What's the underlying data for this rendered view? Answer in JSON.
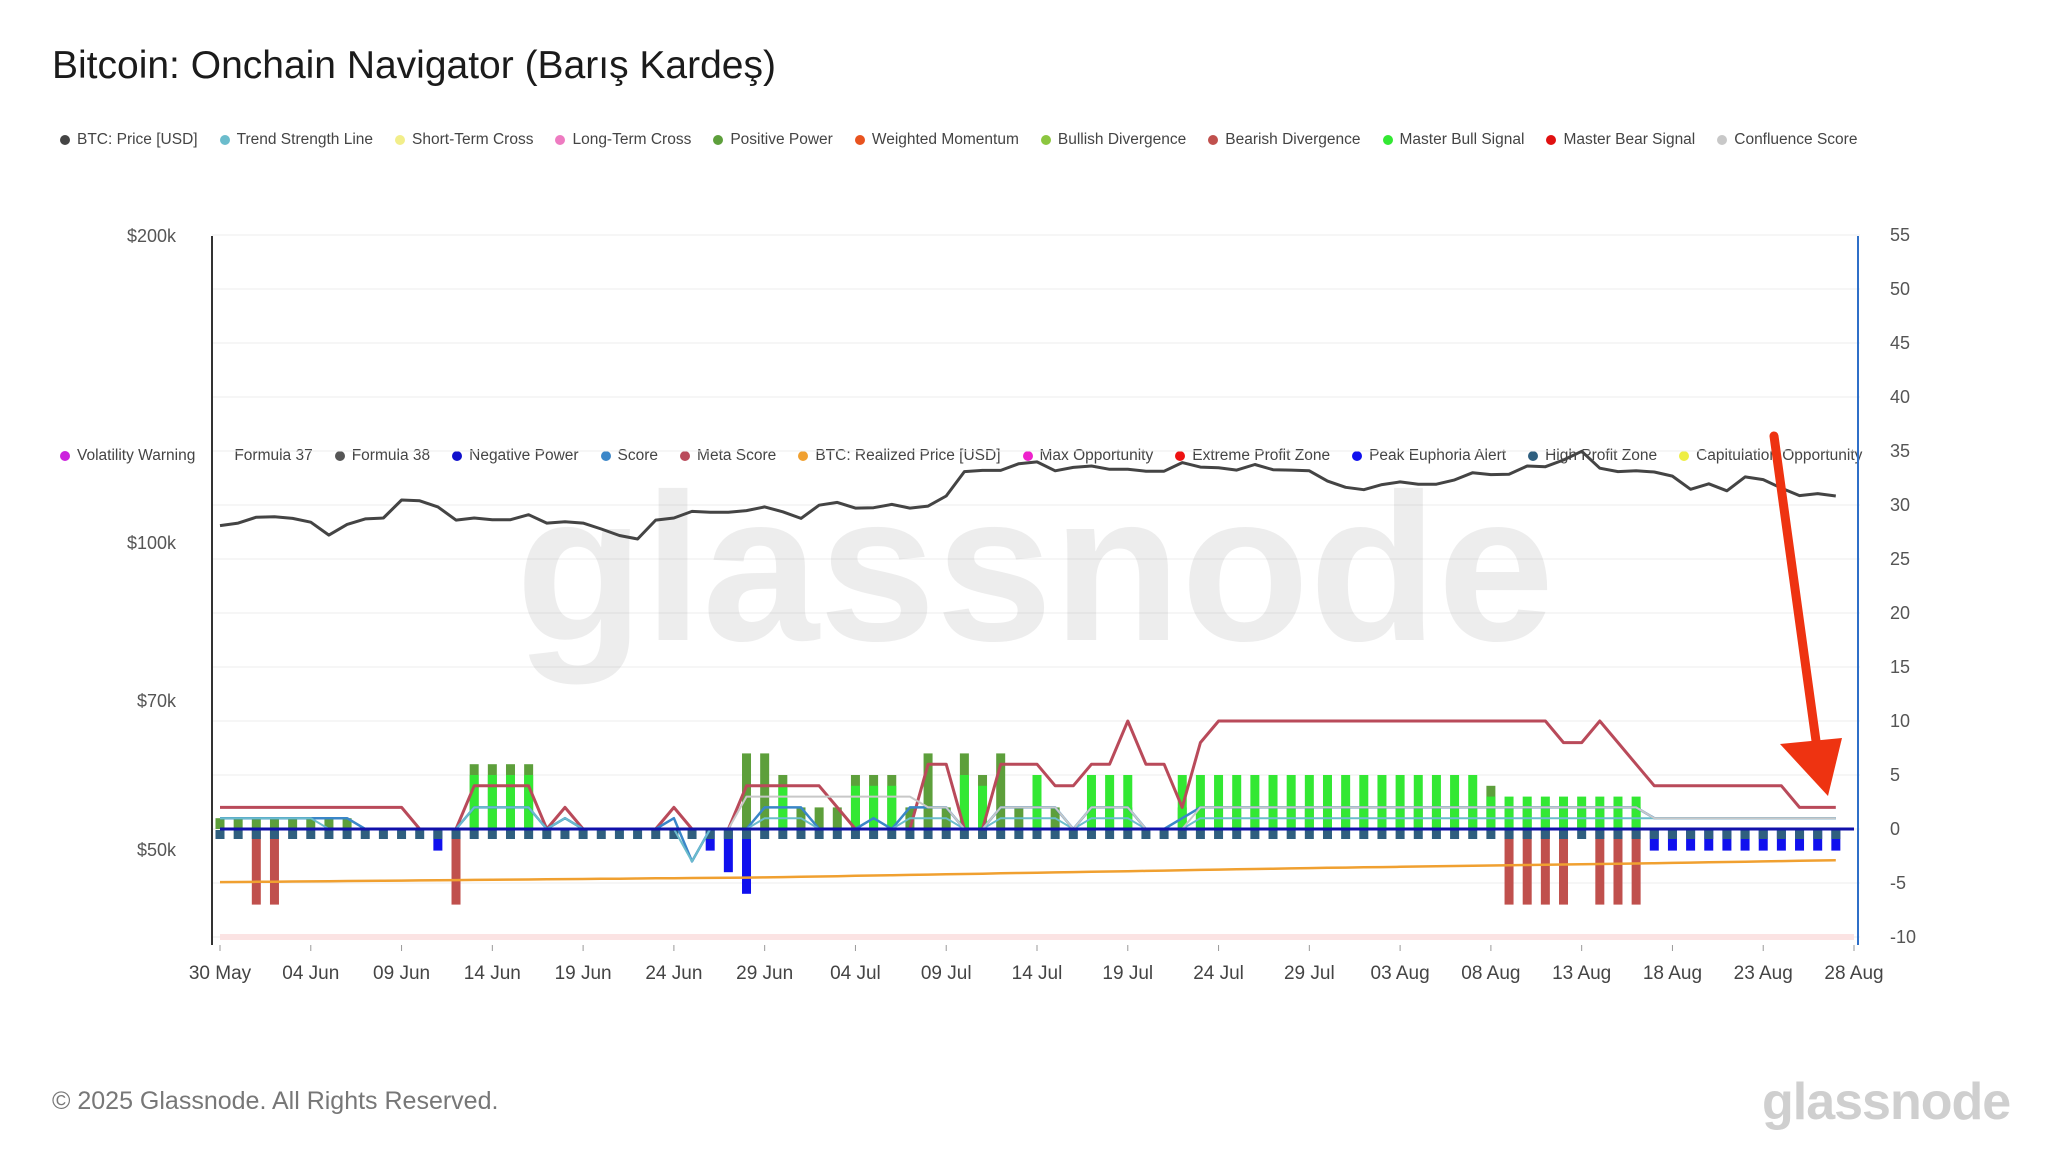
{
  "title": "Bitcoin: Onchain Navigator (Barış Kardeş)",
  "copyright": "© 2025 Glassnode. All Rights Reserved.",
  "brand": "glassnode",
  "watermark": "glassnode",
  "legend_row_1": [
    {
      "label": "BTC: Price [USD]",
      "color": "#444444"
    },
    {
      "label": "Trend Strength Line",
      "color": "#6bbccc"
    },
    {
      "label": "Short-Term Cross",
      "color": "#f2ee8a"
    },
    {
      "label": "Long-Term Cross",
      "color": "#ee7bc1"
    },
    {
      "label": "Positive Power",
      "color": "#5d9f3b"
    },
    {
      "label": "Weighted Momentum",
      "color": "#e8531f"
    },
    {
      "label": "Bullish Divergence",
      "color": "#8cc63f"
    },
    {
      "label": "Bearish Divergence",
      "color": "#c0504d"
    },
    {
      "label": "Master Bull Signal",
      "color": "#33e833"
    },
    {
      "label": "Master Bear Signal",
      "color": "#e01010"
    },
    {
      "label": "Confluence Score",
      "color": "#c8c8c8"
    }
  ],
  "legend_row_2": [
    {
      "label": "Volatility Warning",
      "color": "#cc22dd"
    },
    {
      "label": "Formula 37",
      "color": "#ffffff"
    },
    {
      "label": "Formula 38",
      "color": "#555555"
    },
    {
      "label": "Negative Power",
      "color": "#1010cc"
    },
    {
      "label": "Score",
      "color": "#3a86c8"
    },
    {
      "label": "Meta Score",
      "color": "#b94a5a"
    },
    {
      "label": "BTC: Realized Price [USD]",
      "color": "#f0a030"
    },
    {
      "label": "Max Opportunity",
      "color": "#ee22cc"
    },
    {
      "label": "Extreme Profit Zone",
      "color": "#ee1111"
    },
    {
      "label": "Peak Euphoria Alert",
      "color": "#1010ee"
    },
    {
      "label": "High Profit Zone",
      "color": "#2f5f7f"
    },
    {
      "label": "Capitulation Opportunity",
      "color": "#eeee44"
    }
  ],
  "colors": {
    "price": "#444444",
    "realized": "#f0a030",
    "meta": "#b94a5a",
    "score": "#3a86c8",
    "trend": "#6bbccc",
    "confluence": "#c8c8c8",
    "peak": "#1010aa",
    "master_bull": "#33e833",
    "positive": "#5d9f3b",
    "bullish": "#8cc63f",
    "bearish": "#c0504d",
    "negative": "#1010ee",
    "high_profit": "#2f5f7f",
    "extreme": "#ee1111",
    "short_cross": "#f2ee8a",
    "long_cross": "#ee7bc1",
    "volatility": "#cc22dd",
    "capitulation": "#eeee44",
    "annotation_arrow": "#ee3311"
  },
  "chart_data": {
    "type": "line",
    "title": "Bitcoin: Onchain Navigator (Barış Kardeş)",
    "x_start": "2025-05-30",
    "x_end": "2025-08-28",
    "x_ticks": [
      "30 May",
      "04 Jun",
      "09 Jun",
      "14 Jun",
      "19 Jun",
      "24 Jun",
      "29 Jun",
      "04 Jul",
      "09 Jul",
      "14 Jul",
      "19 Jul",
      "24 Jul",
      "29 Jul",
      "03 Aug",
      "08 Aug",
      "13 Aug",
      "18 Aug",
      "23 Aug",
      "28 Aug"
    ],
    "y_left": {
      "scale": "log",
      "ticks": [
        {
          "value": 50000,
          "label": "$50k"
        },
        {
          "value": 70000,
          "label": "$70k"
        },
        {
          "value": 100000,
          "label": "$100k"
        },
        {
          "value": 200000,
          "label": "$200k"
        }
      ]
    },
    "y_right": {
      "scale": "linear",
      "range": [
        -10,
        55
      ],
      "ticks": [
        "-10",
        "-5",
        "0",
        "5",
        "10",
        "15",
        "20",
        "25",
        "30",
        "35",
        "40",
        "45",
        "50",
        "55"
      ]
    },
    "series": [
      {
        "name": "BTC: Price [USD]",
        "axis": "left",
        "values": [
          104000,
          104600,
          106000,
          106100,
          105700,
          104800,
          101800,
          104300,
          105600,
          105800,
          110200,
          110000,
          108500,
          105300,
          105800,
          105400,
          105400,
          106600,
          104600,
          104900,
          104600,
          103200,
          101700,
          100900,
          105300,
          105800,
          107400,
          107200,
          107200,
          107600,
          108500,
          107300,
          105700,
          108900,
          109600,
          108200,
          108300,
          109100,
          108200,
          108700,
          111200,
          117500,
          117800,
          117800,
          119600,
          120100,
          117700,
          118600,
          119000,
          118100,
          118100,
          117600,
          117600,
          119900,
          118700,
          118500,
          117900,
          119400,
          118000,
          117900,
          117700,
          115000,
          113400,
          112800,
          114100,
          114800,
          114200,
          114200,
          115300,
          117200,
          116700,
          116800,
          119000,
          118800,
          120600,
          123000,
          118400,
          117500,
          117700,
          117400,
          116300,
          112900,
          114300,
          112500,
          116100,
          115400,
          113200,
          111300,
          111800,
          111200
        ]
      },
      {
        "name": "BTC: Realized Price [USD]",
        "axis": "left",
        "values": [
          46500,
          46517,
          46533,
          46550,
          46567,
          46583,
          46600,
          46617,
          46633,
          46650,
          46667,
          46683,
          46700,
          46717,
          46733,
          46750,
          46767,
          46783,
          46800,
          46817,
          46833,
          46850,
          46867,
          46883,
          46900,
          46917,
          46933,
          46950,
          46967,
          46983,
          47000,
          47033,
          47067,
          47100,
          47133,
          47167,
          47200,
          47233,
          47267,
          47300,
          47333,
          47367,
          47400,
          47433,
          47467,
          47500,
          47533,
          47567,
          47600,
          47633,
          47667,
          47700,
          47733,
          47767,
          47800,
          47833,
          47867,
          47900,
          47933,
          47967,
          48000,
          48028,
          48056,
          48083,
          48111,
          48139,
          48167,
          48194,
          48222,
          48250,
          48278,
          48306,
          48333,
          48361,
          48389,
          48417,
          48444,
          48472,
          48500,
          48533,
          48567,
          48600,
          48633,
          48667,
          48700,
          48733,
          48767,
          48800,
          48833,
          48850
        ]
      },
      {
        "name": "Meta Score",
        "axis": "right",
        "values": [
          2,
          2,
          2,
          2,
          2,
          2,
          2,
          2,
          2,
          2,
          2,
          0,
          0,
          0,
          4,
          4,
          4,
          4,
          0,
          2,
          0,
          0,
          0,
          0,
          0,
          2,
          0,
          0,
          0,
          4,
          4,
          4,
          4,
          4,
          2,
          0,
          0,
          0,
          0,
          6,
          6,
          0,
          0,
          6,
          6,
          6,
          4,
          4,
          6,
          6,
          10,
          6,
          6,
          2,
          8,
          10,
          10,
          10,
          10,
          10,
          10,
          10,
          10,
          10,
          10,
          10,
          10,
          10,
          10,
          10,
          10,
          10,
          10,
          10,
          8,
          8,
          10,
          8,
          6,
          4,
          4,
          4,
          4,
          4,
          4,
          4,
          4,
          2,
          2,
          2
        ]
      },
      {
        "name": "Score",
        "axis": "right",
        "values": [
          1,
          1,
          1,
          1,
          1,
          1,
          1,
          1,
          0,
          0,
          0,
          0,
          0,
          0,
          2,
          2,
          2,
          2,
          0,
          1,
          0,
          0,
          0,
          0,
          0,
          1,
          -3,
          0,
          0,
          0,
          2,
          2,
          2,
          0,
          0,
          0,
          1,
          0,
          2,
          2,
          2,
          0,
          0,
          2,
          2,
          2,
          2,
          0,
          2,
          2,
          2,
          0,
          0,
          1,
          2,
          2,
          2,
          2,
          2,
          2,
          2,
          2,
          2,
          2,
          2,
          2,
          2,
          2,
          2,
          2,
          2,
          2,
          2,
          2,
          2,
          2,
          2,
          2,
          2,
          1,
          1,
          1,
          1,
          1,
          1,
          1,
          1,
          1,
          1,
          1
        ]
      },
      {
        "name": "Trend Strength Line",
        "axis": "right",
        "values": [
          1,
          1,
          1,
          1,
          1,
          1,
          0,
          0,
          0,
          0,
          0,
          0,
          0,
          0,
          2,
          2,
          2,
          2,
          0,
          1,
          0,
          0,
          0,
          0,
          0,
          0,
          -3,
          0,
          0,
          0,
          1,
          1,
          1,
          0,
          0,
          0,
          0,
          0,
          1,
          1,
          1,
          0,
          0,
          1,
          1,
          1,
          1,
          0,
          1,
          1,
          1,
          0,
          0,
          0,
          1,
          1,
          1,
          1,
          1,
          1,
          1,
          1,
          1,
          1,
          1,
          1,
          1,
          1,
          1,
          1,
          1,
          1,
          1,
          1,
          1,
          1,
          1,
          1,
          1,
          1,
          1,
          1,
          1,
          1,
          1,
          1,
          1,
          1,
          1,
          1
        ]
      },
      {
        "name": "Confluence Score",
        "axis": "right",
        "values": [
          0,
          0,
          0,
          0,
          0,
          0,
          0,
          0,
          0,
          0,
          0,
          0,
          0,
          0,
          0,
          0,
          0,
          0,
          0,
          0,
          0,
          0,
          0,
          0,
          0,
          0,
          0,
          0,
          0,
          3,
          3,
          3,
          3,
          3,
          3,
          3,
          3,
          3,
          3,
          2,
          2,
          0,
          0,
          2,
          2,
          2,
          2,
          0,
          2,
          2,
          2,
          0,
          0,
          0,
          2,
          2,
          2,
          2,
          2,
          2,
          2,
          2,
          2,
          2,
          2,
          2,
          2,
          2,
          2,
          2,
          2,
          2,
          2,
          2,
          2,
          2,
          2,
          2,
          2,
          1,
          1,
          1,
          1,
          1,
          1,
          1,
          1,
          1,
          1,
          1
        ]
      },
      {
        "name": "Peak Euphoria Alert",
        "axis": "right",
        "values": [
          0,
          0,
          0,
          0,
          0,
          0,
          0,
          0,
          0,
          0,
          0,
          0,
          0,
          0,
          0,
          0,
          0,
          0,
          0,
          0,
          0,
          0,
          0,
          0,
          0,
          0,
          0,
          0,
          0,
          0,
          0,
          0,
          0,
          0,
          0,
          0,
          0,
          0,
          0,
          0,
          0,
          0,
          0,
          0,
          0,
          0,
          0,
          0,
          0,
          0,
          0,
          0,
          0,
          0,
          0,
          0,
          0,
          0,
          0,
          0,
          0,
          0,
          0,
          0,
          0,
          0,
          0,
          0,
          0,
          0,
          0,
          0,
          0,
          0,
          0,
          0,
          0,
          0,
          0,
          0,
          0,
          0,
          0,
          0,
          0,
          0,
          0,
          0,
          0,
          0
        ]
      },
      {
        "name": "Positive Power",
        "axis": "right",
        "type": "bar",
        "values": [
          1,
          1,
          1,
          1,
          1,
          1,
          1,
          1,
          0,
          0,
          0,
          0,
          0,
          0,
          6,
          6,
          6,
          6,
          0,
          0,
          0,
          0,
          0,
          0,
          0,
          0,
          0,
          0,
          0,
          7,
          7,
          5,
          2,
          2,
          2,
          5,
          5,
          5,
          2,
          7,
          2,
          7,
          5,
          7,
          2,
          4,
          2,
          0,
          2,
          2,
          2,
          0,
          0,
          2,
          2,
          2,
          2,
          2,
          2,
          2,
          2,
          2,
          2,
          2,
          2,
          2,
          2,
          2,
          2,
          2,
          4,
          2,
          2,
          2,
          2,
          2,
          2,
          2,
          2,
          0,
          0,
          0,
          0,
          0,
          0,
          0,
          0,
          0,
          0,
          0
        ]
      },
      {
        "name": "Master Bull Signal",
        "axis": "right",
        "type": "bar",
        "values": [
          0,
          0,
          0,
          0,
          0,
          0,
          0,
          0,
          0,
          0,
          0,
          0,
          0,
          0,
          5,
          5,
          5,
          5,
          0,
          0,
          0,
          0,
          0,
          0,
          0,
          0,
          0,
          0,
          0,
          0,
          0,
          4,
          0,
          0,
          0,
          4,
          4,
          4,
          0,
          0,
          0,
          5,
          4,
          0,
          0,
          5,
          0,
          0,
          5,
          5,
          5,
          0,
          0,
          5,
          5,
          5,
          5,
          5,
          5,
          5,
          5,
          5,
          5,
          5,
          5,
          5,
          5,
          5,
          5,
          5,
          3,
          3,
          3,
          3,
          3,
          3,
          3,
          3,
          3,
          0,
          0,
          0,
          0,
          0,
          0,
          0,
          0,
          0,
          0,
          0
        ]
      },
      {
        "name": "Negative Power",
        "axis": "right",
        "type": "bar",
        "values": [
          0,
          0,
          0,
          0,
          0,
          0,
          0,
          0,
          0,
          0,
          0,
          0,
          -2,
          0,
          0,
          0,
          0,
          0,
          0,
          0,
          0,
          0,
          0,
          0,
          0,
          0,
          0,
          -2,
          -4,
          -6,
          0,
          0,
          0,
          0,
          0,
          0,
          0,
          0,
          0,
          0,
          0,
          0,
          0,
          0,
          0,
          0,
          0,
          0,
          0,
          0,
          0,
          0,
          0,
          0,
          0,
          0,
          0,
          0,
          0,
          0,
          0,
          0,
          0,
          0,
          0,
          0,
          0,
          0,
          0,
          0,
          0,
          0,
          0,
          0,
          0,
          0,
          0,
          0,
          0,
          -2,
          -2,
          -2,
          -2,
          -2,
          -2,
          -2,
          -2,
          -2,
          -2,
          -2
        ]
      },
      {
        "name": "Bearish Divergence",
        "axis": "right",
        "type": "bar",
        "values": [
          0,
          0,
          -7,
          -7,
          0,
          0,
          0,
          0,
          0,
          0,
          0,
          0,
          0,
          -7,
          0,
          0,
          0,
          0,
          0,
          0,
          0,
          0,
          0,
          0,
          0,
          0,
          0,
          0,
          0,
          0,
          0,
          0,
          0,
          0,
          0,
          0,
          0,
          0,
          0,
          0,
          0,
          0,
          0,
          0,
          0,
          0,
          0,
          0,
          0,
          0,
          0,
          0,
          0,
          0,
          0,
          0,
          0,
          0,
          0,
          0,
          0,
          0,
          0,
          0,
          0,
          0,
          0,
          0,
          0,
          0,
          0,
          -7,
          -7,
          -7,
          -7,
          0,
          -7,
          -7,
          -7,
          0,
          0,
          0,
          0,
          0,
          0,
          0,
          0,
          0,
          0,
          0
        ]
      }
    ]
  }
}
